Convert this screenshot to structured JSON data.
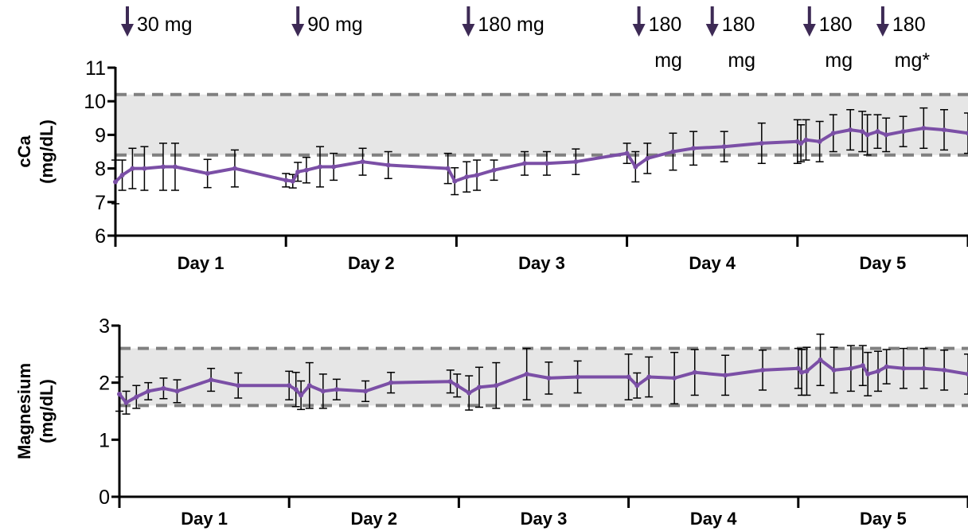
{
  "doses": [
    {
      "line1": "30 mg",
      "line2": "",
      "x": 0.0
    },
    {
      "line1": "90 mg",
      "line2": "",
      "x": 1.0
    },
    {
      "line1": "180 mg",
      "line2": "",
      "x": 2.0
    },
    {
      "line1": "180",
      "line2": "mg",
      "x": 3.0
    },
    {
      "line1": "180",
      "line2": "mg",
      "x": 3.43
    },
    {
      "line1": "180",
      "line2": "mg",
      "x": 4.0
    },
    {
      "line1": "180",
      "line2": "mg*",
      "x": 4.43
    }
  ],
  "colors": {
    "series": "#7b4fa6",
    "arrow": "#3d2a55",
    "band": "#e6e6e6",
    "refline": "#808080",
    "axis": "#000000"
  },
  "chart_data": [
    {
      "type": "line",
      "panel": "top",
      "ylabel_line1": "cCa",
      "ylabel_line2": "(mg/dL)",
      "ylim": [
        6,
        11
      ],
      "yticks": [
        6,
        7,
        8,
        9,
        10,
        11
      ],
      "xlim": [
        0,
        5
      ],
      "day_labels": [
        "Day 1",
        "Day 2",
        "Day 3",
        "Day 4",
        "Day 5"
      ],
      "reference_range": [
        8.4,
        10.2
      ],
      "series": [
        {
          "x": [
            0.0,
            0.04,
            0.1,
            0.17,
            0.28,
            0.35,
            0.54,
            0.7,
            1.0,
            1.04,
            1.07,
            1.12,
            1.2,
            1.28,
            1.45,
            1.6,
            1.95,
            1.99,
            2.06,
            2.12,
            2.22,
            2.4,
            2.53,
            2.7,
            3.0,
            3.05,
            3.12,
            3.27,
            3.39,
            3.57,
            3.79,
            4.0,
            4.02,
            4.05,
            4.13,
            4.21,
            4.31,
            4.38,
            4.41,
            4.47,
            4.52,
            4.62,
            4.74,
            4.86,
            5.0
          ],
          "y": [
            7.6,
            7.8,
            8.0,
            8.0,
            8.05,
            8.05,
            7.85,
            8.0,
            7.65,
            7.62,
            7.9,
            7.95,
            8.05,
            8.05,
            8.2,
            8.1,
            8.0,
            7.62,
            7.75,
            7.8,
            7.95,
            8.15,
            8.15,
            8.2,
            8.45,
            8.05,
            8.3,
            8.5,
            8.6,
            8.65,
            8.75,
            8.8,
            8.75,
            8.85,
            8.8,
            9.05,
            9.15,
            9.1,
            9.0,
            9.1,
            9.0,
            9.1,
            9.2,
            9.15,
            9.05
          ],
          "err": [
            0.65,
            0.45,
            0.6,
            0.65,
            0.7,
            0.7,
            0.42,
            0.55,
            0.2,
            0.2,
            0.28,
            0.38,
            0.6,
            0.4,
            0.4,
            0.4,
            0.45,
            0.4,
            0.45,
            0.45,
            0.3,
            0.35,
            0.35,
            0.38,
            0.3,
            0.45,
            0.45,
            0.55,
            0.5,
            0.45,
            0.6,
            0.65,
            0.55,
            0.6,
            0.6,
            0.55,
            0.6,
            0.6,
            0.6,
            0.5,
            0.5,
            0.45,
            0.6,
            0.6,
            0.6
          ]
        }
      ]
    },
    {
      "type": "line",
      "panel": "bottom",
      "ylabel_line1": "Magnesium",
      "ylabel_line2": "(mg/dL)",
      "ylim": [
        0,
        3
      ],
      "yticks": [
        0,
        1,
        2,
        3
      ],
      "xlim": [
        0,
        5
      ],
      "day_labels": [
        "Day 1",
        "Day 2",
        "Day 3",
        "Day 4",
        "Day 5"
      ],
      "reference_range": [
        1.6,
        2.6
      ],
      "series": [
        {
          "x": [
            0.0,
            0.04,
            0.1,
            0.17,
            0.26,
            0.34,
            0.54,
            0.7,
            1.0,
            1.04,
            1.07,
            1.12,
            1.2,
            1.28,
            1.45,
            1.6,
            1.95,
            1.99,
            2.06,
            2.12,
            2.22,
            2.4,
            2.53,
            2.7,
            3.0,
            3.05,
            3.12,
            3.27,
            3.39,
            3.57,
            3.79,
            4.0,
            4.02,
            4.05,
            4.13,
            4.21,
            4.31,
            4.38,
            4.41,
            4.47,
            4.52,
            4.62,
            4.74,
            4.86,
            5.0
          ],
          "y": [
            1.8,
            1.65,
            1.75,
            1.85,
            1.9,
            1.85,
            2.05,
            1.95,
            1.95,
            1.88,
            1.78,
            1.95,
            1.85,
            1.88,
            1.85,
            2.0,
            2.02,
            1.95,
            1.82,
            1.92,
            1.95,
            2.15,
            2.08,
            2.1,
            2.1,
            1.95,
            2.1,
            2.08,
            2.18,
            2.13,
            2.22,
            2.25,
            2.18,
            2.2,
            2.4,
            2.22,
            2.25,
            2.3,
            2.15,
            2.2,
            2.28,
            2.25,
            2.25,
            2.22,
            2.15
          ],
          "err": [
            0.3,
            0.2,
            0.2,
            0.15,
            0.18,
            0.2,
            0.2,
            0.22,
            0.25,
            0.3,
            0.25,
            0.4,
            0.3,
            0.18,
            0.18,
            0.18,
            0.2,
            0.2,
            0.3,
            0.35,
            0.4,
            0.45,
            0.28,
            0.28,
            0.4,
            0.22,
            0.35,
            0.45,
            0.4,
            0.35,
            0.35,
            0.35,
            0.4,
            0.42,
            0.45,
            0.4,
            0.4,
            0.35,
            0.38,
            0.35,
            0.3,
            0.35,
            0.35,
            0.35,
            0.35
          ]
        }
      ]
    }
  ]
}
